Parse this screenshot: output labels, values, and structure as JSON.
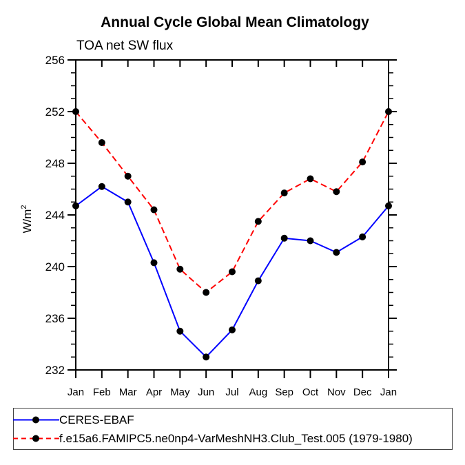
{
  "chart_data": {
    "type": "line",
    "title": "Annual Cycle Global Mean Climatology",
    "subtitle": "TOA net SW flux",
    "ylabel": "W/m²",
    "ylabel_base": "W/m",
    "ylabel_exp": "2",
    "categories": [
      "Jan",
      "Feb",
      "Mar",
      "Apr",
      "May",
      "Jun",
      "Jul",
      "Aug",
      "Sep",
      "Oct",
      "Nov",
      "Dec",
      "Jan"
    ],
    "ylim": [
      232,
      256
    ],
    "yticks": [
      232,
      236,
      240,
      244,
      248,
      252,
      256
    ],
    "ytick_step": 4,
    "yminor_step": 1,
    "grid": "off",
    "legend_position": "bottom-left-box",
    "marker": "filled-circle",
    "marker_color": "#000000",
    "axis_color": "#000000",
    "series": [
      {
        "name": "CERES-EBAF",
        "color": "#0000ff",
        "style": "solid",
        "values": [
          244.7,
          246.2,
          245.0,
          240.3,
          235.0,
          233.0,
          235.1,
          238.9,
          242.2,
          242.0,
          241.1,
          242.3,
          244.7
        ]
      },
      {
        "name": "f.e15a6.FAMIPC5.ne0np4-VarMeshNH3.Club_Test.005 (1979-1980)",
        "color": "#ff0000",
        "style": "dashed",
        "values": [
          252.0,
          249.6,
          247.0,
          244.4,
          239.8,
          238.0,
          239.6,
          243.5,
          245.7,
          246.8,
          245.8,
          248.1,
          252.0
        ]
      }
    ]
  }
}
